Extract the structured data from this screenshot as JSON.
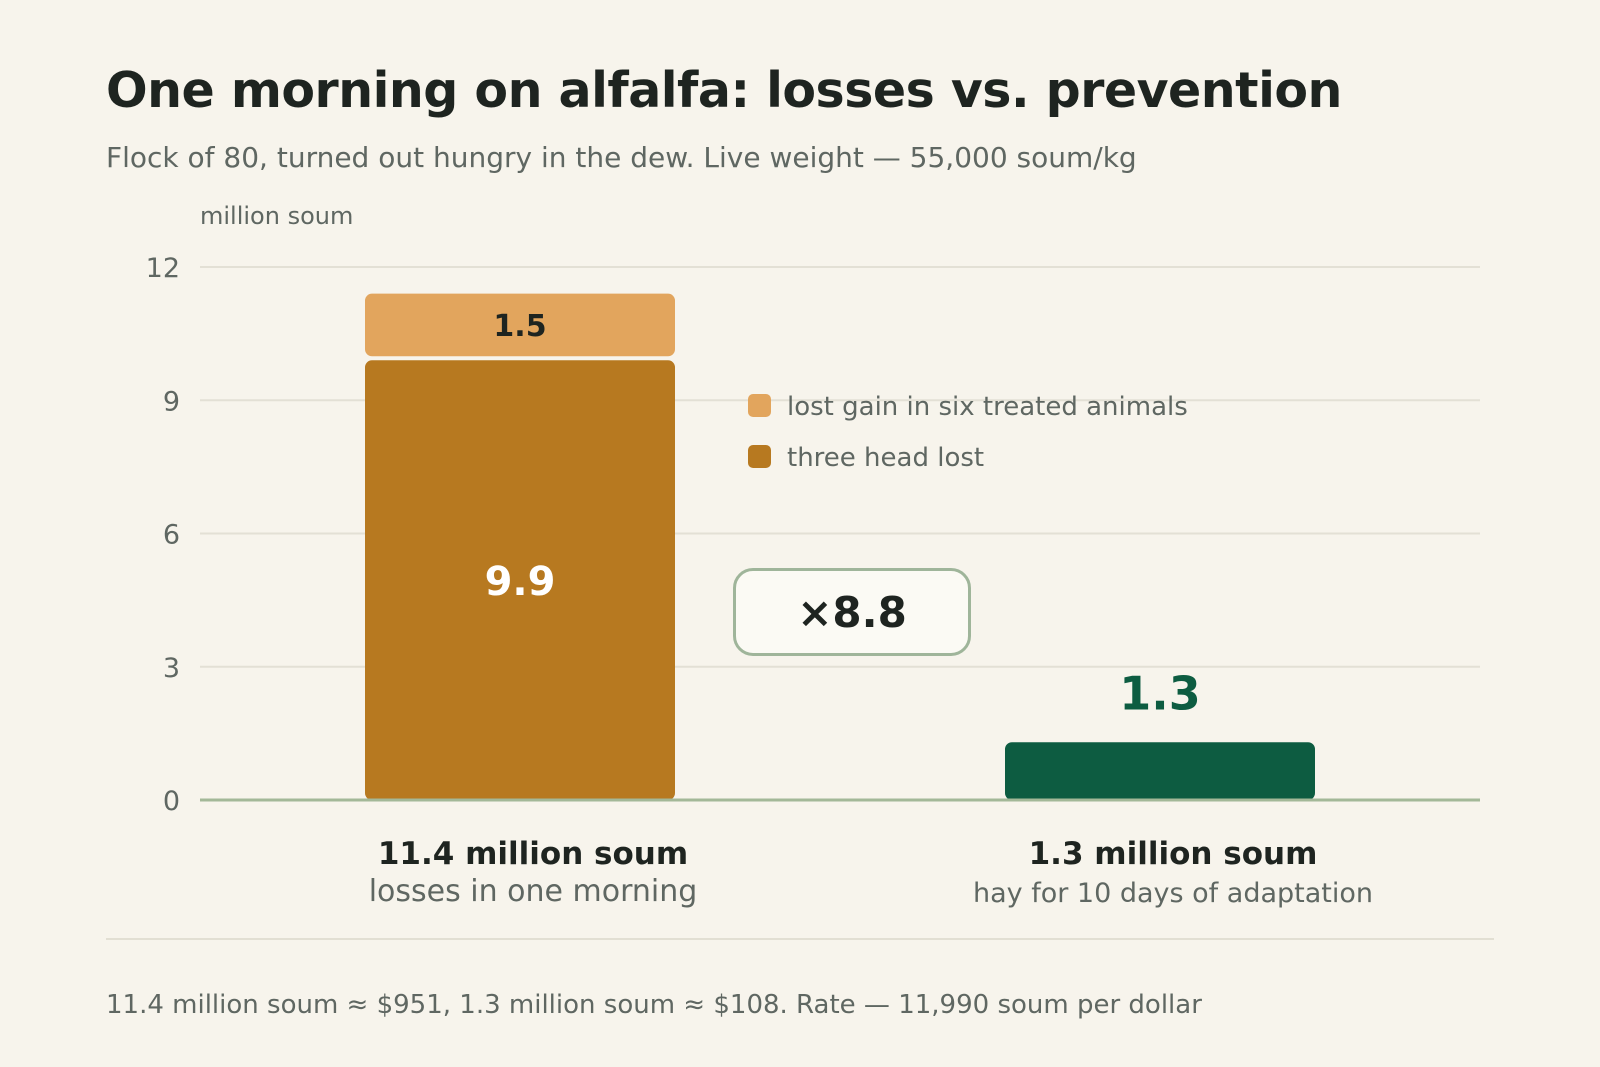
{
  "header": {
    "title": "One morning on alfalfa: losses vs. prevention",
    "subtitle": "Flock of 80, turned out hungry in the dew. Live weight — 55,000 soum/kg"
  },
  "ratio_label": "×8.8",
  "categories_text": [
    {
      "main": "11.4 million soum",
      "sub": "losses in one morning"
    },
    {
      "main": "1.3 million soum",
      "sub": "hay for 10 days of adaptation"
    }
  ],
  "footnote": "11.4 million soum ≈ $951, 1.3 million soum ≈ $108. Rate — 11,990 soum per dollar",
  "colors": {
    "lost_head": "#b77920",
    "lost_gain": "#e2a55d",
    "prevention": "#0d5c41",
    "grid": "#e3e0d5",
    "baseline": "#a3b898",
    "axis_text": "#5f6762"
  },
  "chart_data": {
    "type": "bar",
    "stacked": true,
    "ylabel": "million soum",
    "ylim": [
      0,
      12
    ],
    "yticks": [
      0,
      3,
      6,
      9,
      12
    ],
    "grid": true,
    "legend_position": "middle",
    "categories": [
      "losses in one morning",
      "hay for 10 days of adaptation"
    ],
    "series": [
      {
        "name": "three head lost",
        "color": "#b77920",
        "values": [
          9.9,
          null
        ],
        "labels": [
          "9.9",
          ""
        ]
      },
      {
        "name": "lost gain in six treated animals",
        "color": "#e2a55d",
        "values": [
          1.5,
          null
        ],
        "labels": [
          "1.5",
          ""
        ]
      },
      {
        "name": "",
        "color": "#0d5c41",
        "values": [
          null,
          1.3
        ],
        "labels": [
          "",
          "1.3"
        ]
      }
    ],
    "legend": [
      {
        "label": "lost gain in six treated animals",
        "color": "#e2a55d"
      },
      {
        "label": "three head lost",
        "color": "#b77920"
      }
    ]
  }
}
